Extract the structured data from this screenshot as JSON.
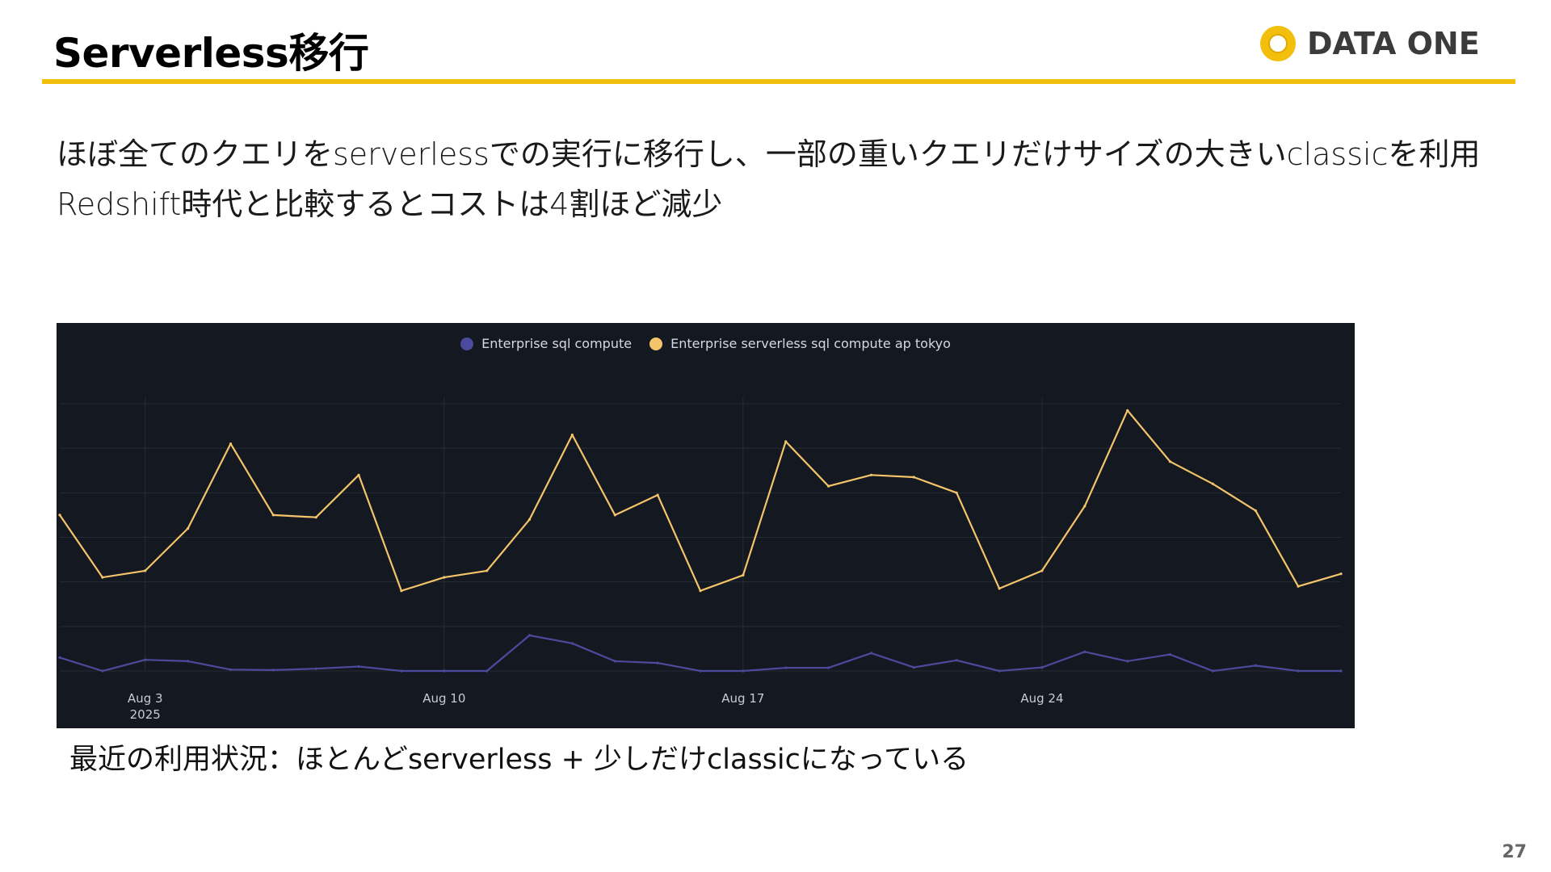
{
  "slide": {
    "title": "Serverless移行",
    "logo_text": "DATA ONE",
    "body_lines": [
      "ほぼ全てのクエリをserverlessでの実行に移行し、一部の重いクエリだけサイズの大きいclassicを利用",
      "Redshift時代と比較するとコストは4割ほど減少"
    ],
    "caption": "最近の利用状況：ほとんどserverless + 少しだけclassicになっている",
    "page_number": "27"
  },
  "colors": {
    "accent": "#f2c00c",
    "chart_background": "#141820",
    "series_classic": "#4b4a9c",
    "series_serverless": "#f3c46a"
  },
  "chart_data": {
    "type": "line",
    "title": "",
    "xlabel": "",
    "ylabel": "",
    "x_ticks": [
      {
        "label": "Aug 3",
        "sublabel": "2025",
        "index": 2
      },
      {
        "label": "Aug 10",
        "sublabel": "",
        "index": 9
      },
      {
        "label": "Aug 17",
        "sublabel": "",
        "index": 16
      },
      {
        "label": "Aug 24",
        "sublabel": "",
        "index": 23
      }
    ],
    "ylim": [
      0,
      60
    ],
    "grid": true,
    "legend_position": "top-center",
    "series": [
      {
        "name": "Enterprise sql compute",
        "color": "#4b4a9c",
        "values": [
          3,
          0,
          2.5,
          2.2,
          0.3,
          0.2,
          0.5,
          1,
          0,
          0,
          0,
          8,
          6.2,
          2.2,
          1.8,
          0,
          0,
          0.7,
          0.7,
          4,
          0.8,
          2.4,
          0,
          0.8,
          4.3,
          2.2,
          3.7,
          0,
          1.2,
          0,
          0
        ]
      },
      {
        "name": "Enterprise serverless sql compute ap tokyo",
        "color": "#f3c46a",
        "values": [
          35,
          21,
          22.5,
          32,
          51,
          35,
          34.5,
          44,
          18,
          21,
          22.5,
          34,
          53,
          35,
          39.5,
          18,
          21.5,
          51.5,
          41.5,
          44,
          43.5,
          40,
          18.5,
          22.5,
          37,
          58.5,
          47,
          42,
          36,
          19,
          21.8
        ]
      }
    ]
  }
}
